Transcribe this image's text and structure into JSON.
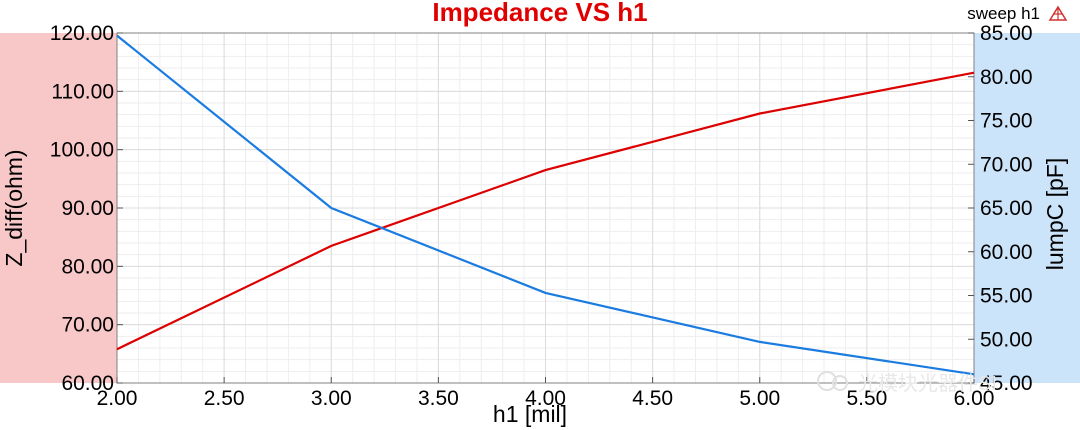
{
  "chart_data": {
    "type": "line",
    "title": "Impedance VS h1",
    "xlabel": "h1 [mil]",
    "ylabel_left": "Z_diff(ohm)",
    "ylabel_right": "lumpC [pF]",
    "legend_label": "sweep h1",
    "x_ticks": [
      "2.00",
      "2.50",
      "3.00",
      "3.50",
      "4.00",
      "4.50",
      "5.00",
      "5.50",
      "6.00"
    ],
    "yleft_ticks": [
      "60.00",
      "70.00",
      "80.00",
      "90.00",
      "100.00",
      "110.00",
      "120.00"
    ],
    "yright_ticks": [
      "45.00",
      "50.00",
      "55.00",
      "60.00",
      "65.00",
      "70.00",
      "75.00",
      "80.00",
      "85.00"
    ],
    "xlim": [
      2.0,
      6.0
    ],
    "ylim_left": [
      60,
      120
    ],
    "ylim_right": [
      45,
      85
    ],
    "grid": true,
    "legend_position": "top-right",
    "series": [
      {
        "axis": "left",
        "color": "#dd0000",
        "x": [
          2,
          3,
          4,
          5,
          6
        ],
        "values": [
          65.8,
          83.5,
          96.5,
          106.2,
          113.2
        ]
      },
      {
        "axis": "right",
        "color": "#1a7be0",
        "x": [
          2,
          3,
          4,
          5,
          6
        ],
        "values": [
          84.7,
          65.0,
          55.3,
          49.7,
          46.0
        ]
      }
    ],
    "colors": {
      "left_band": "#f8c8c8",
      "right_band": "#cce4fa",
      "grid": "#dcdcdc"
    },
    "watermark": "光模块光器件SI"
  }
}
